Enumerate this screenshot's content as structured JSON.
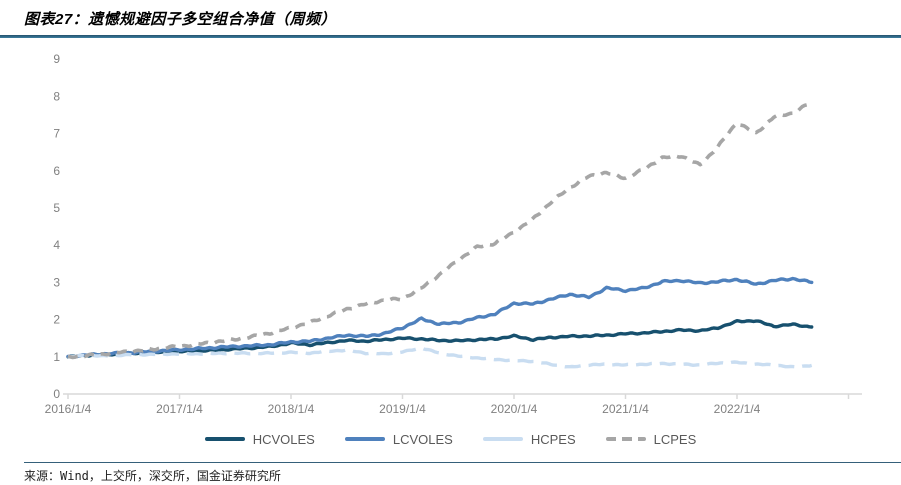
{
  "header": {
    "title": "图表27：遗憾规避因子多空组合净值（周频）"
  },
  "footer": {
    "source": "来源：Wind，上交所，深交所，国金证券研究所"
  },
  "colors": {
    "title_rule": "#2e6e8f",
    "axis": "#d9d9d9",
    "axis_text": "#808080",
    "legend_text": "#595959"
  },
  "chart_data": {
    "type": "line",
    "title": "图表27：遗憾规避因子多空组合净值（周频）",
    "xlabel": "",
    "ylabel": "",
    "ylim": [
      0,
      9
    ],
    "grid": false,
    "legend_position": "bottom",
    "y_ticks": [
      0,
      1,
      2,
      3,
      4,
      5,
      6,
      7,
      8,
      9
    ],
    "x_tick_years": [
      2016,
      2017,
      2018,
      2019,
      2020,
      2021,
      2022
    ],
    "x_tick_labels": [
      "2016/1/4",
      "2017/1/4",
      "2018/1/4",
      "2019/1/4",
      "2020/1/4",
      "2021/1/4",
      "2022/1/4"
    ],
    "x": [
      2016,
      2016.17,
      2016.33,
      2016.5,
      2016.67,
      2016.83,
      2017,
      2017.17,
      2017.33,
      2017.5,
      2017.67,
      2017.83,
      2018,
      2018.17,
      2018.33,
      2018.5,
      2018.67,
      2018.83,
      2019,
      2019.17,
      2019.33,
      2019.5,
      2019.67,
      2019.83,
      2020,
      2020.17,
      2020.33,
      2020.5,
      2020.67,
      2020.83,
      2021,
      2021.17,
      2021.33,
      2021.5,
      2021.67,
      2021.83,
      2022,
      2022.17,
      2022.33,
      2022.5,
      2022.67
    ],
    "series": [
      {
        "name": "HCVOLES",
        "color": "#17506e",
        "style": "solid",
        "values": [
          1.0,
          1.04,
          1.06,
          1.08,
          1.1,
          1.12,
          1.14,
          1.16,
          1.18,
          1.21,
          1.24,
          1.28,
          1.37,
          1.32,
          1.38,
          1.44,
          1.42,
          1.46,
          1.5,
          1.48,
          1.44,
          1.43,
          1.46,
          1.48,
          1.56,
          1.46,
          1.52,
          1.55,
          1.56,
          1.58,
          1.62,
          1.64,
          1.68,
          1.72,
          1.7,
          1.78,
          1.95,
          1.97,
          1.82,
          1.87,
          1.8
        ]
      },
      {
        "name": "LCVOLES",
        "color": "#4f81bd",
        "style": "solid",
        "values": [
          1.0,
          1.05,
          1.08,
          1.1,
          1.13,
          1.16,
          1.19,
          1.22,
          1.25,
          1.28,
          1.3,
          1.33,
          1.4,
          1.42,
          1.5,
          1.58,
          1.55,
          1.62,
          1.78,
          2.02,
          1.88,
          1.92,
          2.05,
          2.15,
          2.44,
          2.42,
          2.55,
          2.68,
          2.6,
          2.85,
          2.78,
          2.85,
          3.02,
          3.05,
          2.98,
          3.02,
          3.08,
          2.95,
          3.05,
          3.1,
          3.0
        ]
      },
      {
        "name": "HCPES",
        "color": "#c9ddf1",
        "style": "long-dash",
        "values": [
          1.0,
          1.04,
          1.02,
          1.05,
          1.06,
          1.07,
          1.08,
          1.08,
          1.09,
          1.1,
          1.09,
          1.1,
          1.12,
          1.1,
          1.15,
          1.18,
          1.1,
          1.08,
          1.13,
          1.24,
          1.1,
          1.02,
          0.97,
          0.93,
          0.9,
          0.88,
          0.8,
          0.72,
          0.78,
          0.8,
          0.78,
          0.8,
          0.82,
          0.8,
          0.78,
          0.83,
          0.85,
          0.8,
          0.78,
          0.72,
          0.77
        ]
      },
      {
        "name": "LCPES",
        "color": "#a6a6a6",
        "style": "dash",
        "values": [
          1.0,
          1.03,
          1.08,
          1.13,
          1.17,
          1.23,
          1.28,
          1.34,
          1.4,
          1.47,
          1.55,
          1.65,
          1.78,
          1.92,
          2.1,
          2.28,
          2.42,
          2.52,
          2.56,
          2.85,
          3.2,
          3.6,
          3.95,
          4.05,
          4.35,
          4.7,
          5.15,
          5.55,
          5.85,
          5.95,
          5.8,
          6.05,
          6.35,
          6.4,
          6.15,
          6.65,
          7.3,
          7.0,
          7.45,
          7.55,
          7.85
        ]
      }
    ]
  }
}
